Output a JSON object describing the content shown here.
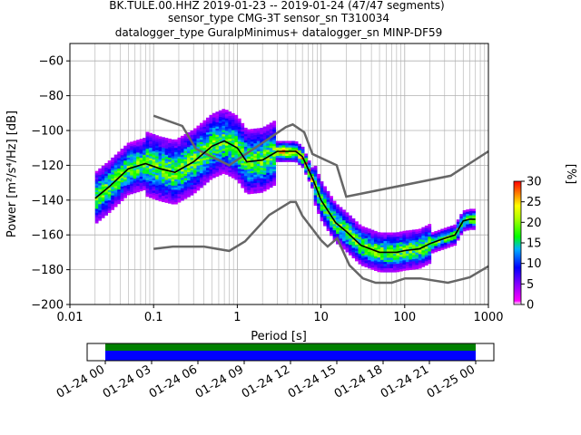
{
  "title_lines": [
    "BK.TULE.00.HHZ   2019-01-23 -- 2019-01-24  (47/47 segments)",
    "sensor_type CMG-3T sensor_sn T310034",
    "datalogger_type GuralpMinimus+ datalogger_sn MINP-DF59"
  ],
  "chart_data": [
    {
      "type": "heatmap",
      "xlabel": "Period [s]",
      "ylabel": "Power [m²/s⁴/Hz] [dB]",
      "xscale": "log",
      "xlim": [
        0.01,
        1000
      ],
      "ylim": [
        -200,
        -50
      ],
      "xticks": [
        0.01,
        0.1,
        1,
        10,
        100,
        1000
      ],
      "xtick_labels": [
        "0.01",
        "0.1",
        "1",
        "10",
        "100",
        "1000"
      ],
      "yticks": [
        -200,
        -180,
        -160,
        -140,
        -120,
        -100,
        -80,
        -60
      ],
      "ytick_labels": [
        "−200",
        "−180",
        "−160",
        "−140",
        "−120",
        "−100",
        "−80",
        "−60"
      ],
      "grid": true,
      "colorbar": {
        "label": "[%]",
        "range": [
          0,
          30
        ],
        "ticks": [
          0,
          5,
          10,
          15,
          20,
          25,
          30
        ],
        "tick_labels": [
          "0",
          "5",
          "10",
          "15",
          "20",
          "25",
          "30"
        ]
      },
      "noise_models": [
        {
          "name": "high",
          "x": [
            0.1,
            0.22,
            0.32,
            0.8,
            3.8,
            4.6,
            6.3,
            7.9,
            15.4,
            20,
            354.8,
            1000
          ],
          "y": [
            -91.5,
            -97.4,
            -110.5,
            -120,
            -98,
            -96.5,
            -101,
            -113.5,
            -120,
            -138,
            -126,
            -112
          ]
        },
        {
          "name": "low",
          "x": [
            0.1,
            0.17,
            0.4,
            0.8,
            1.24,
            2.4,
            4.3,
            5,
            6,
            10,
            12,
            15.6,
            21.9,
            31.6,
            45,
            70,
            101,
            154,
            328,
            600,
            1000
          ],
          "y": [
            -168,
            -166.7,
            -166.7,
            -169.2,
            -163.7,
            -148.6,
            -141.1,
            -141.1,
            -149,
            -163,
            -166.7,
            -162,
            -177.5,
            -185,
            -187.5,
            -187.5,
            -185,
            -185,
            -187.5,
            -184.4,
            -178
          ]
        }
      ],
      "mean_curve": {
        "x": [
          0.02,
          0.03,
          0.05,
          0.08,
          0.12,
          0.18,
          0.3,
          0.5,
          0.7,
          1.0,
          1.3,
          2.0,
          3.0,
          5.0,
          6.0,
          8.0,
          10,
          15,
          20,
          30,
          50,
          80,
          100,
          150,
          200,
          300,
          400,
          500,
          600,
          700
        ],
        "y": [
          -139,
          -132,
          -122,
          -119,
          -122,
          -124,
          -118,
          -109,
          -106,
          -110,
          -118,
          -117,
          -112,
          -112,
          -115,
          -128,
          -140,
          -153,
          -158,
          -166,
          -170,
          -170,
          -169,
          -168,
          -165,
          -162,
          -160,
          -152,
          -151,
          -151
        ]
      }
    },
    {
      "type": "heatmap",
      "xaxis": "time",
      "xlim": [
        "01-24 00",
        "01-25 00"
      ],
      "xticks": [
        "01-24 00",
        "01-24 03",
        "01-24 06",
        "01-24 09",
        "01-24 12",
        "01-24 15",
        "01-24 18",
        "01-24 21",
        "01-25 00"
      ],
      "bands": [
        {
          "color": "#008000"
        },
        {
          "color": "#0000ff"
        }
      ]
    }
  ]
}
